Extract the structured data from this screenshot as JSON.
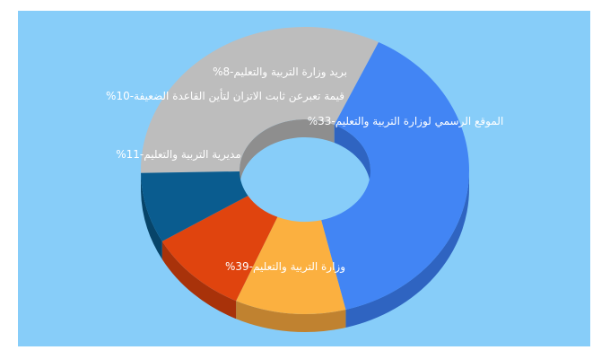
{
  "chart_data": {
    "type": "pie",
    "donut": true,
    "three_d": true,
    "title": "",
    "slices": [
      {
        "label": "%الموقع الرسمي لوزارة التربية والتعليم-33",
        "value": 33,
        "color": "#bdbdbd",
        "side_color": "#8e8e8e"
      },
      {
        "label": "%وزارة التربية والتعليم-39",
        "value": 39,
        "color": "#4285f4",
        "side_color": "#2f64c1"
      },
      {
        "label": "%مديرية التربية والتعليم-11",
        "value": 11,
        "color": "#fbb040",
        "side_color": "#c08230"
      },
      {
        "label": "%قيمة تعبرعن ثابت الاتزان لتأين القاعدة الضعيفة-10",
        "value": 10,
        "color": "#e0440e",
        "side_color": "#a8320a"
      },
      {
        "label": "%بريد وزارة التربية والتعليم-8",
        "value": 8,
        "color": "#0a5c8f",
        "side_color": "#074469"
      }
    ],
    "background_color": "#87cdf9"
  }
}
